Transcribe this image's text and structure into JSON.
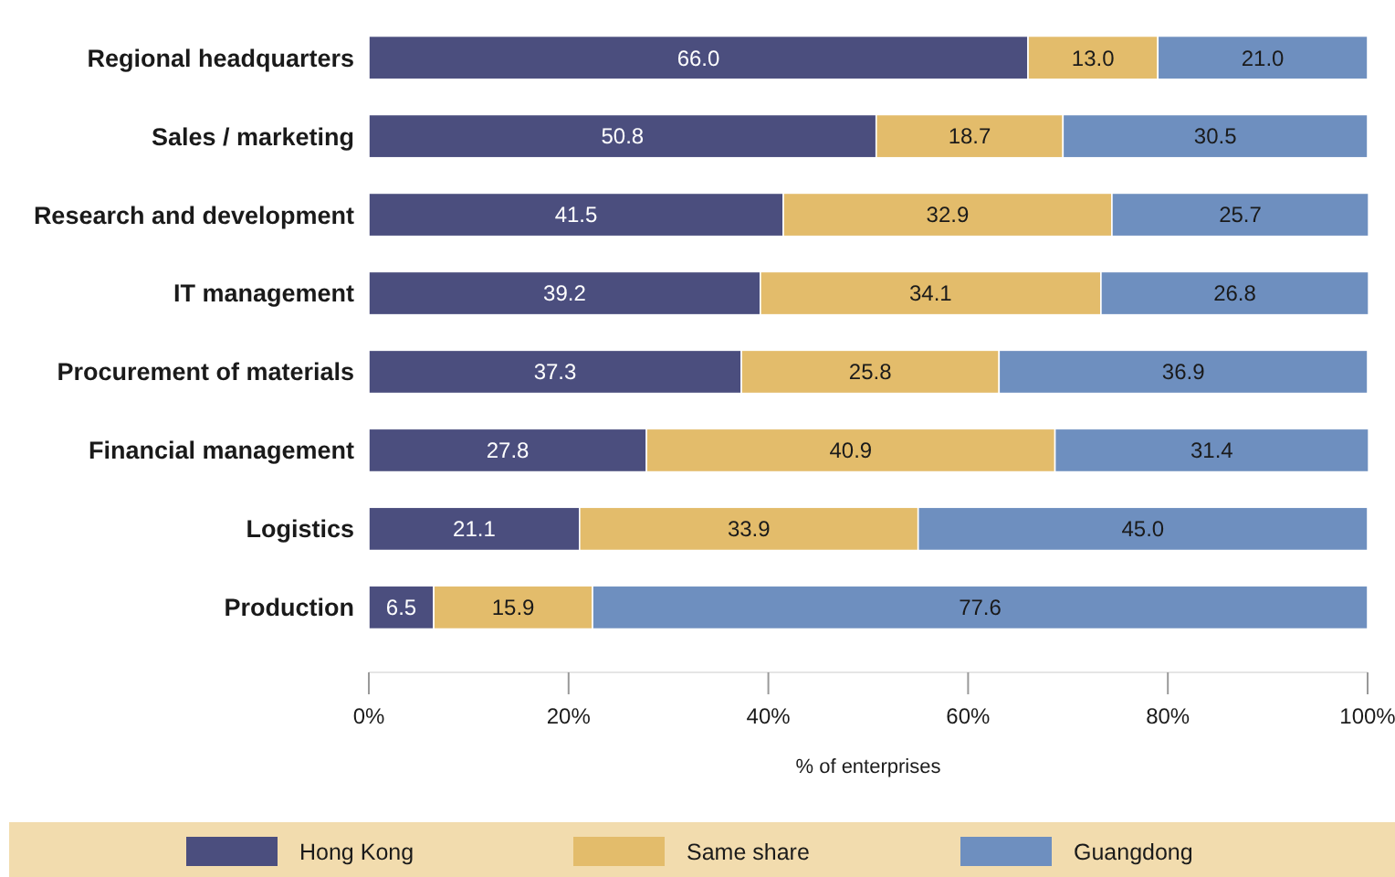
{
  "chart_data": {
    "type": "bar",
    "orientation": "horizontal",
    "stacked": true,
    "categories": [
      "Regional headquarters",
      "Sales / marketing",
      "Research and development",
      "IT management",
      "Procurement of materials",
      "Financial management",
      "Logistics",
      "Production"
    ],
    "series": [
      {
        "name": "Hong Kong",
        "color": "#4b4e7e",
        "values": [
          66,
          50.8,
          41.5,
          39.2,
          37.3,
          27.8,
          21.1,
          6.5
        ],
        "value_labels": [
          "66.0",
          "50.8",
          "41.5",
          "39.2",
          "37.3",
          "27.8",
          "21.1",
          "6.5"
        ]
      },
      {
        "name": "Same share",
        "color": "#e3bc6b",
        "values": [
          13,
          18.7,
          32.9,
          34.1,
          25.8,
          40.9,
          33.9,
          15.9
        ],
        "value_labels": [
          "13.0",
          "18.7",
          "32.9",
          "34.1",
          "25.8",
          "40.9",
          "33.9",
          "15.9"
        ]
      },
      {
        "name": "Guangdong",
        "color": "#6e8fbf",
        "values": [
          21,
          30.5,
          25.7,
          26.8,
          36.9,
          31.4,
          45,
          77.6
        ],
        "value_labels": [
          "21.0",
          "30.5",
          "25.7",
          "26.8",
          "36.9",
          "31.4",
          "45.0",
          "77.6"
        ]
      }
    ],
    "xlim": [
      0,
      100
    ],
    "xticks": [
      {
        "value": 0,
        "label": "0%"
      },
      {
        "value": 20,
        "label": "20%"
      },
      {
        "value": 40,
        "label": "40%"
      },
      {
        "value": 60,
        "label": "60%"
      },
      {
        "value": 80,
        "label": "80%"
      },
      {
        "value": 100,
        "label": "100%"
      }
    ],
    "xlabel": "% of enterprises",
    "legend": "bottom",
    "grid": false
  }
}
